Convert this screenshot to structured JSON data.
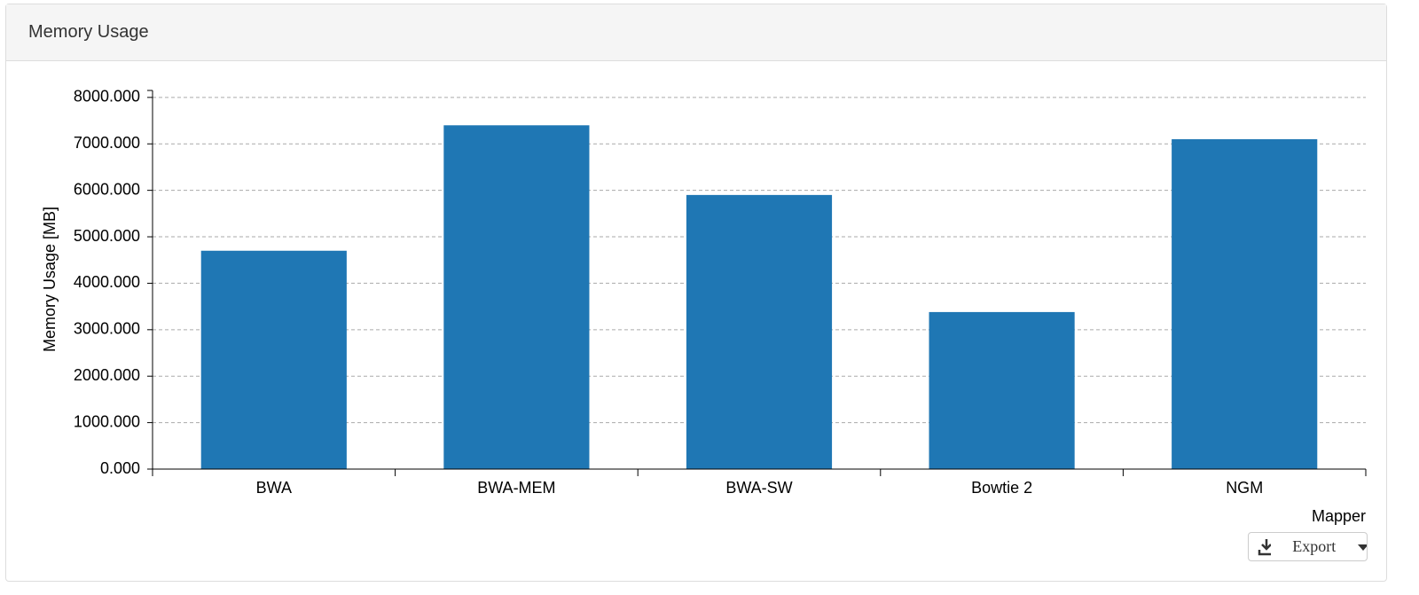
{
  "panel": {
    "title": "Memory Usage",
    "export_button": "Export"
  },
  "chart_data": {
    "type": "bar",
    "y_label": "Memory Usage [MB]",
    "x_label": "Mapper",
    "categories": [
      "BWA",
      "BWA-MEM",
      "BWA-SW",
      "Bowtie 2",
      "NGM"
    ],
    "values": [
      4700,
      7400,
      5900,
      3380,
      7100
    ],
    "color": "#1f77b4",
    "ylim": [
      0,
      8150
    ],
    "yticks": [
      {
        "value": 0,
        "label": "0.000"
      },
      {
        "value": 1000,
        "label": "1000.000"
      },
      {
        "value": 2000,
        "label": "2000.000"
      },
      {
        "value": 3000,
        "label": "3000.000"
      },
      {
        "value": 4000,
        "label": "4000.000"
      },
      {
        "value": 5000,
        "label": "5000.000"
      },
      {
        "value": 6000,
        "label": "6000.000"
      },
      {
        "value": 7000,
        "label": "7000.000"
      },
      {
        "value": 8000,
        "label": "8000.000"
      }
    ],
    "grid": true
  }
}
